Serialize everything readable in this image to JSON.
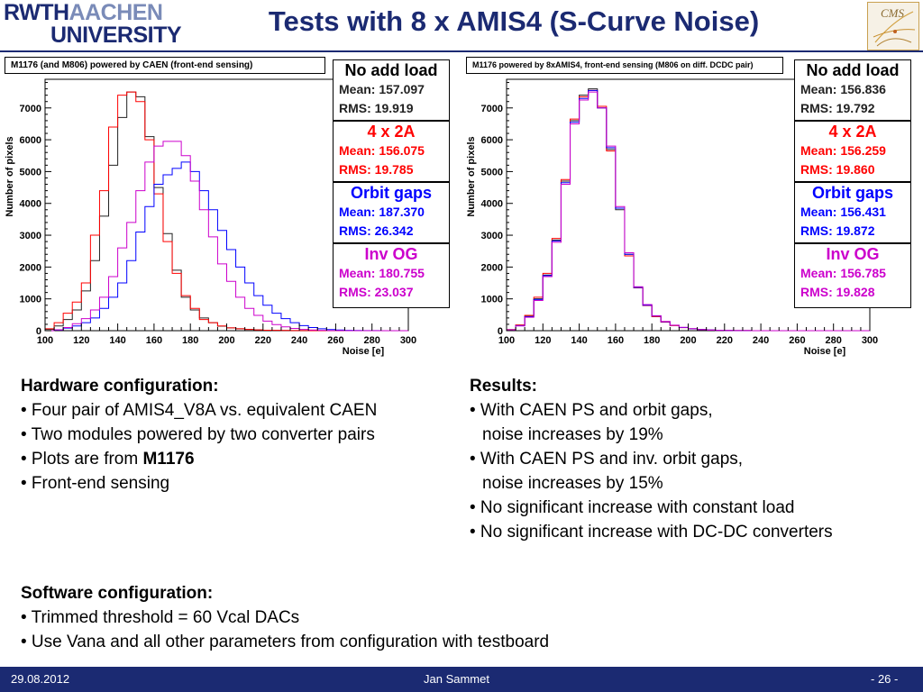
{
  "header": {
    "logo_line1_bold": "RWTH",
    "logo_line1_thin": "AACHEN",
    "logo_line2": "UNIVERSITY",
    "title": "Tests with 8 x AMIS4 (S-Curve Noise)",
    "cms_logo_text": "CMS"
  },
  "chart_data": [
    {
      "type": "histogram",
      "title": "M1176 (and M806) powered by CAEN (front-end sensing)",
      "xlabel": "Noise [e]",
      "ylabel": "Number of pixels",
      "xlim": [
        100,
        300
      ],
      "ylim": [
        0,
        7900
      ],
      "xticks": [
        100,
        120,
        140,
        160,
        180,
        200,
        220,
        240,
        260,
        280,
        300
      ],
      "yticks": [
        0,
        1000,
        2000,
        3000,
        4000,
        5000,
        6000,
        7000
      ],
      "bin_width": 5,
      "bin_start": 100,
      "series": [
        {
          "name": "No add load",
          "color": "#222222",
          "mean": "157.097",
          "rms": "19.919",
          "values": [
            40,
            150,
            350,
            650,
            1250,
            2200,
            3600,
            5200,
            6700,
            7500,
            7350,
            6100,
            4500,
            3050,
            1900,
            1050,
            650,
            400,
            250,
            140,
            90,
            60,
            40,
            25,
            15,
            10,
            6,
            3,
            2,
            1,
            1,
            0,
            0,
            0,
            0,
            0,
            0,
            0,
            0,
            0
          ]
        },
        {
          "name": "4 x 2A",
          "color": "#ff0000",
          "mean": "156.075",
          "rms": "19.785",
          "values": [
            60,
            250,
            550,
            900,
            1500,
            3000,
            4400,
            6400,
            7400,
            7500,
            7200,
            6000,
            4300,
            2800,
            1800,
            1100,
            700,
            350,
            250,
            150,
            90,
            60,
            40,
            25,
            15,
            10,
            6,
            3,
            2,
            1,
            1,
            0,
            0,
            0,
            0,
            0,
            0,
            0,
            0,
            0
          ]
        },
        {
          "name": "Orbit gaps",
          "color": "#0000ff",
          "mean": "187.370",
          "rms": "26.342",
          "values": [
            0,
            20,
            80,
            150,
            250,
            400,
            700,
            1050,
            1500,
            2200,
            3100,
            3900,
            4600,
            4900,
            5100,
            5300,
            5000,
            4400,
            3800,
            3150,
            2550,
            2000,
            1500,
            1100,
            800,
            550,
            380,
            250,
            160,
            100,
            60,
            35,
            20,
            12,
            6,
            3,
            2,
            1,
            0,
            0
          ]
        },
        {
          "name": "Inv OG",
          "color": "#cc00cc",
          "mean": "180.755",
          "rms": "23.037",
          "values": [
            0,
            30,
            100,
            220,
            380,
            650,
            1050,
            1700,
            2600,
            3400,
            4400,
            5300,
            5800,
            5950,
            5950,
            5500,
            4700,
            3800,
            2950,
            2100,
            1550,
            1050,
            700,
            480,
            300,
            190,
            120,
            70,
            40,
            20,
            10,
            5,
            2,
            1,
            0,
            0,
            0,
            0,
            0,
            0
          ]
        }
      ]
    },
    {
      "type": "histogram",
      "title": "M1176 powered by 8xAMIS4, front-end sensing (M806 on diff. DCDC pair)",
      "xlabel": "Noise [e]",
      "ylabel": "Number of pixels",
      "xlim": [
        100,
        300
      ],
      "ylim": [
        0,
        7900
      ],
      "xticks": [
        100,
        120,
        140,
        160,
        180,
        200,
        220,
        240,
        260,
        280,
        300
      ],
      "yticks": [
        0,
        1000,
        2000,
        3000,
        4000,
        5000,
        6000,
        7000
      ],
      "bin_width": 5,
      "bin_start": 100,
      "series": [
        {
          "name": "No add load",
          "color": "#222222",
          "mean": "156.836",
          "rms": "19.792",
          "values": [
            30,
            170,
            450,
            1000,
            1750,
            2850,
            4700,
            6600,
            7400,
            7600,
            7000,
            5700,
            3800,
            2400,
            1350,
            800,
            450,
            280,
            170,
            100,
            60,
            35,
            20,
            12,
            7,
            4,
            2,
            1,
            1,
            0,
            0,
            0,
            0,
            0,
            0,
            0,
            0,
            0,
            0,
            0
          ]
        },
        {
          "name": "4 x 2A",
          "color": "#ff0000",
          "mean": "156.259",
          "rms": "19.860",
          "values": [
            35,
            180,
            480,
            1050,
            1800,
            2900,
            4750,
            6650,
            7350,
            7550,
            7050,
            5650,
            3850,
            2350,
            1350,
            790,
            440,
            270,
            160,
            95,
            55,
            32,
            18,
            10,
            6,
            3,
            2,
            1,
            0,
            0,
            0,
            0,
            0,
            0,
            0,
            0,
            0,
            0,
            0,
            0
          ]
        },
        {
          "name": "Orbit gaps",
          "color": "#0000ff",
          "mean": "156.431",
          "rms": "19.872",
          "values": [
            30,
            160,
            440,
            980,
            1730,
            2820,
            4650,
            6550,
            7300,
            7550,
            7000,
            5750,
            3850,
            2400,
            1360,
            800,
            460,
            280,
            170,
            100,
            60,
            35,
            20,
            12,
            7,
            4,
            2,
            1,
            1,
            0,
            0,
            0,
            0,
            0,
            0,
            0,
            0,
            0,
            0,
            0
          ]
        },
        {
          "name": "Inv OG",
          "color": "#cc00cc",
          "mean": "156.785",
          "rms": "19.828",
          "values": [
            25,
            150,
            420,
            950,
            1700,
            2780,
            4600,
            6500,
            7250,
            7500,
            7000,
            5800,
            3900,
            2450,
            1380,
            820,
            470,
            290,
            175,
            105,
            62,
            36,
            21,
            12,
            7,
            4,
            2,
            1,
            1,
            0,
            0,
            0,
            0,
            0,
            0,
            0,
            0,
            0,
            0,
            0
          ]
        }
      ]
    }
  ],
  "statbox_labels": {
    "mean": "Mean:",
    "rms": "RMS:"
  },
  "hardware": {
    "heading": "Hardware configuration:",
    "items": [
      "• Four pair of AMIS4_V8A vs. equivalent CAEN",
      "• Two modules powered by two converter pairs",
      "• Plots are from ",
      "• Front-end sensing"
    ],
    "bold_module": "M1176"
  },
  "results": {
    "heading": "Results:",
    "lines": [
      "• With CAEN PS and orbit gaps,",
      "noise increases by 19%",
      "• With CAEN PS and inv. orbit gaps,",
      "noise increases by 15%",
      "• No significant increase with constant load",
      "• No significant increase with DC-DC converters"
    ]
  },
  "software": {
    "heading": "Software configuration:",
    "items": [
      "• Trimmed threshold = 60 Vcal DACs",
      "• Use Vana and all other parameters from configuration with testboard"
    ]
  },
  "footer": {
    "date": "29.08.2012",
    "author": "Jan Sammet",
    "page": "- 26 -"
  }
}
